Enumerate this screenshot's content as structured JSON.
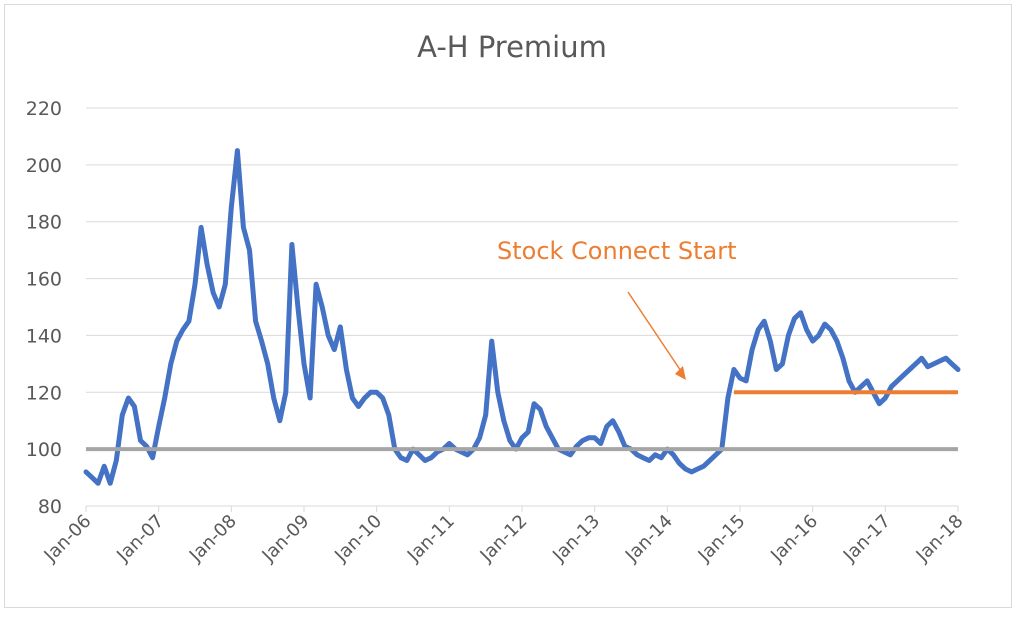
{
  "chart_data": {
    "type": "line",
    "title": "A-H Premium",
    "xlabel": "",
    "ylabel": "",
    "ylim": [
      80,
      220
    ],
    "yticks": [
      80,
      100,
      120,
      140,
      160,
      180,
      200,
      220
    ],
    "xticks": [
      "Jan-06",
      "Jan-07",
      "Jan-08",
      "Jan-09",
      "Jan-10",
      "Jan-11",
      "Jan-12",
      "Jan-13",
      "Jan-14",
      "Jan-15",
      "Jan-16",
      "Jan-17",
      "Jan-18"
    ],
    "grid": true,
    "legend": "none",
    "colors": {
      "series": "#4472c4",
      "baseline": "#a5a5a5",
      "annotation": "#ed7d31",
      "grid": "#d9d9d9",
      "text": "#595959"
    },
    "series": [
      {
        "x": [
          "2006-01",
          "2006-02",
          "2006-03",
          "2006-04",
          "2006-05",
          "2006-06",
          "2006-07",
          "2006-08",
          "2006-09",
          "2006-10",
          "2006-11",
          "2006-12",
          "2007-01",
          "2007-02",
          "2007-03",
          "2007-04",
          "2007-05",
          "2007-06",
          "2007-07",
          "2007-08",
          "2007-09",
          "2007-10",
          "2007-11",
          "2007-12",
          "2008-01",
          "2008-02",
          "2008-03",
          "2008-04",
          "2008-05",
          "2008-06",
          "2008-07",
          "2008-08",
          "2008-09",
          "2008-10",
          "2008-11",
          "2008-12",
          "2009-01",
          "2009-02",
          "2009-03",
          "2009-04",
          "2009-05",
          "2009-06",
          "2009-07",
          "2009-08",
          "2009-09",
          "2009-10",
          "2009-11",
          "2009-12",
          "2010-01",
          "2010-02",
          "2010-03",
          "2010-04",
          "2010-05",
          "2010-06",
          "2010-07",
          "2010-08",
          "2010-09",
          "2010-10",
          "2010-11",
          "2010-12",
          "2011-01",
          "2011-02",
          "2011-03",
          "2011-04",
          "2011-05",
          "2011-06",
          "2011-07",
          "2011-08",
          "2011-09",
          "2011-10",
          "2011-11",
          "2011-12",
          "2012-01",
          "2012-02",
          "2012-03",
          "2012-04",
          "2012-05",
          "2012-06",
          "2012-07",
          "2012-08",
          "2012-09",
          "2012-10",
          "2012-11",
          "2012-12",
          "2013-01",
          "2013-02",
          "2013-03",
          "2013-04",
          "2013-05",
          "2013-06",
          "2013-07",
          "2013-08",
          "2013-09",
          "2013-10",
          "2013-11",
          "2013-12",
          "2014-01",
          "2014-02",
          "2014-03",
          "2014-04",
          "2014-05",
          "2014-06",
          "2014-07",
          "2014-08",
          "2014-09",
          "2014-10",
          "2014-11",
          "2014-12",
          "2015-01",
          "2015-02",
          "2015-03",
          "2015-04",
          "2015-05",
          "2015-06",
          "2015-07",
          "2015-08",
          "2015-09",
          "2015-10",
          "2015-11",
          "2015-12",
          "2016-01",
          "2016-02",
          "2016-03",
          "2016-04",
          "2016-05",
          "2016-06",
          "2016-07",
          "2016-08",
          "2016-09",
          "2016-10",
          "2016-11",
          "2016-12",
          "2017-01",
          "2017-02",
          "2017-03",
          "2017-04",
          "2017-05",
          "2017-06",
          "2017-07",
          "2017-08",
          "2017-09",
          "2017-10",
          "2017-11",
          "2017-12",
          "2018-01"
        ],
        "values": [
          92,
          90,
          88,
          94,
          88,
          96,
          112,
          118,
          115,
          103,
          101,
          97,
          108,
          118,
          130,
          138,
          142,
          145,
          158,
          178,
          165,
          155,
          150,
          158,
          185,
          205,
          178,
          170,
          145,
          138,
          130,
          118,
          110,
          120,
          172,
          150,
          130,
          118,
          158,
          150,
          140,
          135,
          143,
          128,
          118,
          115,
          118,
          120,
          120,
          118,
          112,
          100,
          97,
          96,
          100,
          98,
          96,
          97,
          99,
          100,
          102,
          100,
          99,
          98,
          100,
          104,
          112,
          138,
          120,
          110,
          103,
          100,
          104,
          106,
          116,
          114,
          108,
          104,
          100,
          99,
          98,
          101,
          103,
          104,
          104,
          102,
          108,
          110,
          106,
          101,
          100,
          98,
          97,
          96,
          98,
          97,
          100,
          98,
          95,
          93,
          92,
          93,
          94,
          96,
          98,
          100,
          118,
          128,
          125,
          124,
          135,
          142,
          145,
          138,
          128,
          130,
          140,
          146,
          148,
          142,
          138,
          140,
          144,
          142,
          138,
          132,
          124,
          120,
          122,
          124,
          120,
          116,
          118,
          122,
          124,
          126,
          128,
          130,
          132,
          129,
          130,
          131,
          132,
          130,
          128
        ]
      }
    ],
    "reference_lines": [
      {
        "value": 100,
        "from": "2006-01",
        "to": "2018-01"
      },
      {
        "value": 120,
        "from": "2014-12",
        "to": "2018-01"
      }
    ],
    "annotations": [
      {
        "text": "Stock Connect Start",
        "arrow_to": "2014-12"
      }
    ]
  }
}
